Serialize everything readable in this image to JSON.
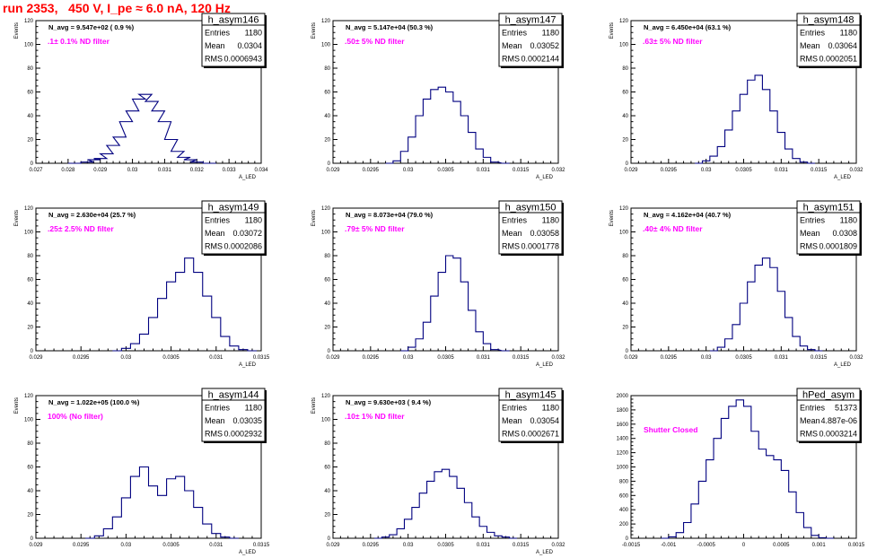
{
  "run_title": "run 2353,   450 V, I_pe ≈ 6.0 nA, 120 Hz",
  "colors": {
    "hist_line": "#000080",
    "filter_text": "#ff00ff",
    "run_title": "#ff0000",
    "axes": "#000000"
  },
  "chart_data": [
    {
      "type": "histogram",
      "name": "h_asym146",
      "stats": {
        "entries": "1180",
        "mean": "0.0304",
        "rms": "0.0006943"
      },
      "stats_labels": [
        "Entries",
        "Mean",
        "RMS"
      ],
      "annotation": "N_avg = 9.547e+02 ( 0.9 %)",
      "filter": ".1± 0.1% ND filter",
      "ylabel": "Events",
      "xlabel": "A_LED",
      "xlim": [
        0.027,
        0.034
      ],
      "ylim": [
        0,
        120
      ],
      "xticks": [
        "0.027",
        "0.028",
        "0.029",
        "0.03",
        "0.031",
        "0.032",
        "0.033",
        "0.034"
      ],
      "xtick_values": [
        0.027,
        0.028,
        0.029,
        0.03,
        0.031,
        0.032,
        0.033,
        0.034
      ],
      "yticks": [
        "0",
        "20",
        "40",
        "60",
        "80",
        "100",
        "120"
      ],
      "ytick_values": [
        0,
        20,
        40,
        60,
        80,
        100,
        120
      ],
      "points": [
        [
          0.0282,
          0
        ],
        [
          0.0286,
          1
        ],
        [
          0.0288,
          3
        ],
        [
          0.029,
          4
        ],
        [
          0.0292,
          8
        ],
        [
          0.0294,
          15
        ],
        [
          0.0296,
          22
        ],
        [
          0.0298,
          35
        ],
        [
          0.03,
          44
        ],
        [
          0.0302,
          54
        ],
        [
          0.0304,
          58
        ],
        [
          0.0306,
          52
        ],
        [
          0.0308,
          44
        ],
        [
          0.031,
          35
        ],
        [
          0.0312,
          20
        ],
        [
          0.0314,
          10
        ],
        [
          0.0316,
          5
        ],
        [
          0.0318,
          3
        ],
        [
          0.032,
          1
        ],
        [
          0.0324,
          0
        ]
      ]
    },
    {
      "type": "histogram",
      "name": "h_asym147",
      "stats": {
        "entries": "1180",
        "mean": "0.03052",
        "rms": "0.0002144"
      },
      "stats_labels": [
        "Entries",
        "Mean",
        "RMS"
      ],
      "annotation": "N_avg = 5.147e+04 (50.3 %)",
      "filter": ".50± 5% ND filter",
      "ylabel": "Events",
      "xlabel": "A_LED",
      "xlim": [
        0.029,
        0.032
      ],
      "ylim": [
        0,
        120
      ],
      "xticks": [
        "0.029",
        "0.0295",
        "0.03",
        "0.0305",
        "0.031",
        "0.0315",
        "0.032"
      ],
      "xtick_values": [
        0.029,
        0.0295,
        0.03,
        0.0305,
        0.031,
        0.0315,
        0.032
      ],
      "yticks": [
        "0",
        "20",
        "40",
        "60",
        "80",
        "100",
        "120"
      ],
      "ytick_values": [
        0,
        20,
        40,
        60,
        80,
        100,
        120
      ],
      "points": [
        [
          0.02975,
          0
        ],
        [
          0.02985,
          2
        ],
        [
          0.02995,
          10
        ],
        [
          0.03005,
          22
        ],
        [
          0.03015,
          40
        ],
        [
          0.03025,
          54
        ],
        [
          0.03035,
          62
        ],
        [
          0.03045,
          64
        ],
        [
          0.03055,
          60
        ],
        [
          0.03065,
          52
        ],
        [
          0.03075,
          40
        ],
        [
          0.03085,
          26
        ],
        [
          0.03095,
          12
        ],
        [
          0.03105,
          5
        ],
        [
          0.03115,
          1
        ],
        [
          0.0313,
          0
        ]
      ]
    },
    {
      "type": "histogram",
      "name": "h_asym148",
      "stats": {
        "entries": "1180",
        "mean": "0.03064",
        "rms": "0.0002051"
      },
      "stats_labels": [
        "Entries",
        "Mean",
        "RMS"
      ],
      "annotation": "N_avg = 6.450e+04 (63.1 %)",
      "filter": ".63± 5% ND filter",
      "ylabel": "Events",
      "xlabel": "A_LED",
      "xlim": [
        0.029,
        0.032
      ],
      "ylim": [
        0,
        120
      ],
      "xticks": [
        "0.029",
        "0.0295",
        "0.03",
        "0.0305",
        "0.031",
        "0.0315",
        "0.032"
      ],
      "xtick_values": [
        0.029,
        0.0295,
        0.03,
        0.0305,
        0.031,
        0.0315,
        0.032
      ],
      "yticks": [
        "0",
        "20",
        "40",
        "60",
        "80",
        "100",
        "120"
      ],
      "ytick_values": [
        0,
        20,
        40,
        60,
        80,
        100,
        120
      ],
      "points": [
        [
          0.0299,
          0
        ],
        [
          0.03,
          2
        ],
        [
          0.0301,
          6
        ],
        [
          0.0302,
          14
        ],
        [
          0.0303,
          28
        ],
        [
          0.0304,
          44
        ],
        [
          0.0305,
          58
        ],
        [
          0.0306,
          70
        ],
        [
          0.0307,
          74
        ],
        [
          0.0308,
          62
        ],
        [
          0.0309,
          44
        ],
        [
          0.031,
          26
        ],
        [
          0.0311,
          12
        ],
        [
          0.0312,
          4
        ],
        [
          0.0313,
          1
        ],
        [
          0.0314,
          0
        ]
      ]
    },
    {
      "type": "histogram",
      "name": "h_asym149",
      "stats": {
        "entries": "1180",
        "mean": "0.03072",
        "rms": "0.0002086"
      },
      "stats_labels": [
        "Entries",
        "Mean",
        "RMS"
      ],
      "annotation": "N_avg = 2.630e+04 (25.7 %)",
      "filter": ".25± 2.5% ND filter",
      "ylabel": "Events",
      "xlabel": "A_LED",
      "xlim": [
        0.029,
        0.0315
      ],
      "ylim": [
        0,
        120
      ],
      "xticks": [
        "0.029",
        "0.0295",
        "0.03",
        "0.0305",
        "0.031",
        "0.0315"
      ],
      "xtick_values": [
        0.029,
        0.0295,
        0.03,
        0.0305,
        0.031,
        0.0315
      ],
      "yticks": [
        "0",
        "20",
        "40",
        "60",
        "80",
        "100",
        "120"
      ],
      "ytick_values": [
        0,
        20,
        40,
        60,
        80,
        100,
        120
      ],
      "points": [
        [
          0.0299,
          0
        ],
        [
          0.03,
          2
        ],
        [
          0.0301,
          6
        ],
        [
          0.0302,
          14
        ],
        [
          0.0303,
          28
        ],
        [
          0.0304,
          44
        ],
        [
          0.0305,
          58
        ],
        [
          0.0306,
          66
        ],
        [
          0.0307,
          78
        ],
        [
          0.0308,
          66
        ],
        [
          0.0309,
          46
        ],
        [
          0.031,
          28
        ],
        [
          0.0311,
          12
        ],
        [
          0.0312,
          4
        ],
        [
          0.0313,
          1
        ],
        [
          0.0314,
          0
        ]
      ]
    },
    {
      "type": "histogram",
      "name": "h_asym150",
      "stats": {
        "entries": "1180",
        "mean": "0.03058",
        "rms": "0.0001778"
      },
      "stats_labels": [
        "Entries",
        "Mean",
        "RMS"
      ],
      "annotation": "N_avg = 8.073e+04 (79.0 %)",
      "filter": ".79± 5% ND filter",
      "ylabel": "Events",
      "xlabel": "A_LED",
      "xlim": [
        0.029,
        0.032
      ],
      "ylim": [
        0,
        120
      ],
      "xticks": [
        "0.029",
        "0.0295",
        "0.03",
        "0.0305",
        "0.031",
        "0.0315",
        "0.032"
      ],
      "xtick_values": [
        0.029,
        0.0295,
        0.03,
        0.0305,
        0.031,
        0.0315,
        0.032
      ],
      "yticks": [
        "0",
        "20",
        "40",
        "60",
        "80",
        "100",
        "120"
      ],
      "ytick_values": [
        0,
        20,
        40,
        60,
        80,
        100,
        120
      ],
      "points": [
        [
          0.02995,
          0
        ],
        [
          0.03005,
          3
        ],
        [
          0.03015,
          10
        ],
        [
          0.03025,
          24
        ],
        [
          0.03035,
          46
        ],
        [
          0.03045,
          66
        ],
        [
          0.03055,
          80
        ],
        [
          0.03065,
          78
        ],
        [
          0.03075,
          58
        ],
        [
          0.03085,
          34
        ],
        [
          0.03095,
          16
        ],
        [
          0.03105,
          6
        ],
        [
          0.03115,
          1
        ],
        [
          0.0313,
          0
        ]
      ]
    },
    {
      "type": "histogram",
      "name": "h_asym151",
      "stats": {
        "entries": "1180",
        "mean": "0.0308",
        "rms": "0.0001809"
      },
      "stats_labels": [
        "Entries",
        "Mean",
        "RMS"
      ],
      "annotation": "N_avg = 4.162e+04 (40.7 %)",
      "filter": ".40± 4% ND filter",
      "ylabel": "Events",
      "xlabel": "A_LED",
      "xlim": [
        0.029,
        0.032
      ],
      "ylim": [
        0,
        120
      ],
      "xticks": [
        "0.029",
        "0.0295",
        "0.03",
        "0.0305",
        "0.031",
        "0.0315",
        "0.032"
      ],
      "xtick_values": [
        0.029,
        0.0295,
        0.03,
        0.0305,
        0.031,
        0.0315,
        0.032
      ],
      "yticks": [
        "0",
        "20",
        "40",
        "60",
        "80",
        "100",
        "120"
      ],
      "ytick_values": [
        0,
        20,
        40,
        60,
        80,
        100,
        120
      ],
      "points": [
        [
          0.0301,
          0
        ],
        [
          0.0302,
          3
        ],
        [
          0.0303,
          10
        ],
        [
          0.0304,
          22
        ],
        [
          0.0305,
          40
        ],
        [
          0.0306,
          58
        ],
        [
          0.0307,
          72
        ],
        [
          0.0308,
          78
        ],
        [
          0.0309,
          70
        ],
        [
          0.031,
          50
        ],
        [
          0.0311,
          28
        ],
        [
          0.0312,
          12
        ],
        [
          0.0313,
          4
        ],
        [
          0.0314,
          1
        ],
        [
          0.0315,
          0
        ]
      ]
    },
    {
      "type": "histogram",
      "name": "h_asym144",
      "stats": {
        "entries": "1180",
        "mean": "0.03035",
        "rms": "0.0002932"
      },
      "stats_labels": [
        "Entries",
        "Mean",
        "RMS"
      ],
      "annotation": "N_avg = 1.022e+05 (100.0 %)",
      "filter": "100% (No filter)",
      "ylabel": "Events",
      "xlabel": "A_LED",
      "xlim": [
        0.029,
        0.0315
      ],
      "ylim": [
        0,
        120
      ],
      "xticks": [
        "0.029",
        "0.0295",
        "0.03",
        "0.0305",
        "0.031",
        "0.0315"
      ],
      "xtick_values": [
        0.029,
        0.0295,
        0.03,
        0.0305,
        0.031,
        0.0315
      ],
      "yticks": [
        "0",
        "20",
        "40",
        "60",
        "80",
        "100",
        "120"
      ],
      "ytick_values": [
        0,
        20,
        40,
        60,
        80,
        100,
        120
      ],
      "points": [
        [
          0.0296,
          0
        ],
        [
          0.0297,
          2
        ],
        [
          0.0298,
          8
        ],
        [
          0.0299,
          18
        ],
        [
          0.03,
          34
        ],
        [
          0.0301,
          52
        ],
        [
          0.0302,
          60
        ],
        [
          0.0303,
          44
        ],
        [
          0.0304,
          36
        ],
        [
          0.0305,
          50
        ],
        [
          0.0306,
          52
        ],
        [
          0.0307,
          40
        ],
        [
          0.0308,
          26
        ],
        [
          0.0309,
          12
        ],
        [
          0.031,
          4
        ],
        [
          0.0311,
          1
        ],
        [
          0.0312,
          0
        ]
      ]
    },
    {
      "type": "histogram",
      "name": "h_asym145",
      "stats": {
        "entries": "1180",
        "mean": "0.03054",
        "rms": "0.0002671"
      },
      "stats_labels": [
        "Entries",
        "Mean",
        "RMS"
      ],
      "annotation": "N_avg = 9.630e+03 ( 9.4 %)",
      "filter": ".10± 1% ND filter",
      "ylabel": "Events",
      "xlabel": "A_LED",
      "xlim": [
        0.029,
        0.032
      ],
      "ylim": [
        0,
        120
      ],
      "xticks": [
        "0.029",
        "0.0295",
        "0.03",
        "0.0305",
        "0.031",
        "0.0315",
        "0.032"
      ],
      "xtick_values": [
        0.029,
        0.0295,
        0.03,
        0.0305,
        0.031,
        0.0315,
        0.032
      ],
      "yticks": [
        "0",
        "20",
        "40",
        "60",
        "80",
        "100",
        "120"
      ],
      "ytick_values": [
        0,
        20,
        40,
        60,
        80,
        100,
        120
      ],
      "points": [
        [
          0.0296,
          0
        ],
        [
          0.0297,
          1
        ],
        [
          0.0298,
          3
        ],
        [
          0.0299,
          8
        ],
        [
          0.03,
          16
        ],
        [
          0.0301,
          26
        ],
        [
          0.0302,
          38
        ],
        [
          0.0303,
          48
        ],
        [
          0.0304,
          56
        ],
        [
          0.0305,
          58
        ],
        [
          0.0306,
          52
        ],
        [
          0.0307,
          42
        ],
        [
          0.0308,
          30
        ],
        [
          0.0309,
          18
        ],
        [
          0.031,
          10
        ],
        [
          0.0311,
          5
        ],
        [
          0.0312,
          2
        ],
        [
          0.0313,
          1
        ],
        [
          0.0314,
          0
        ]
      ]
    },
    {
      "type": "histogram",
      "name": "hPed_asym",
      "stats": {
        "entries": "51373",
        "mean": "4.887e-06",
        "rms": "0.0003214"
      },
      "stats_labels": [
        "Entries",
        "Mean",
        "RMS"
      ],
      "annotation": "",
      "filter": "Shutter Closed",
      "ylabel": "",
      "xlabel": "",
      "xlim": [
        -0.0015,
        0.0015
      ],
      "ylim": [
        0,
        2000
      ],
      "xticks": [
        "-0.0015",
        "-0.001",
        "-0.0005",
        "0",
        "0.0005",
        "0.001",
        "0.0015"
      ],
      "xtick_values": [
        -0.0015,
        -0.001,
        -0.0005,
        0,
        0.0005,
        0.001,
        0.0015
      ],
      "yticks": [
        "0",
        "200",
        "400",
        "600",
        "800",
        "1000",
        "1200",
        "1400",
        "1600",
        "1800",
        "2000"
      ],
      "ytick_values": [
        0,
        200,
        400,
        600,
        800,
        1000,
        1200,
        1400,
        1600,
        1800,
        2000
      ],
      "points": [
        [
          -0.00105,
          0
        ],
        [
          -0.00095,
          20
        ],
        [
          -0.00085,
          80
        ],
        [
          -0.00075,
          220
        ],
        [
          -0.00065,
          480
        ],
        [
          -0.00055,
          800
        ],
        [
          -0.00045,
          1100
        ],
        [
          -0.00035,
          1400
        ],
        [
          -0.00025,
          1680
        ],
        [
          -0.00015,
          1850
        ],
        [
          -5e-05,
          1940
        ],
        [
          5e-05,
          1850
        ],
        [
          0.00015,
          1500
        ],
        [
          0.00025,
          1250
        ],
        [
          0.00035,
          1160
        ],
        [
          0.00045,
          1100
        ],
        [
          0.00055,
          950
        ],
        [
          0.00065,
          650
        ],
        [
          0.00075,
          360
        ],
        [
          0.00085,
          150
        ],
        [
          0.00095,
          40
        ],
        [
          0.00105,
          8
        ],
        [
          0.00115,
          0
        ]
      ]
    }
  ]
}
